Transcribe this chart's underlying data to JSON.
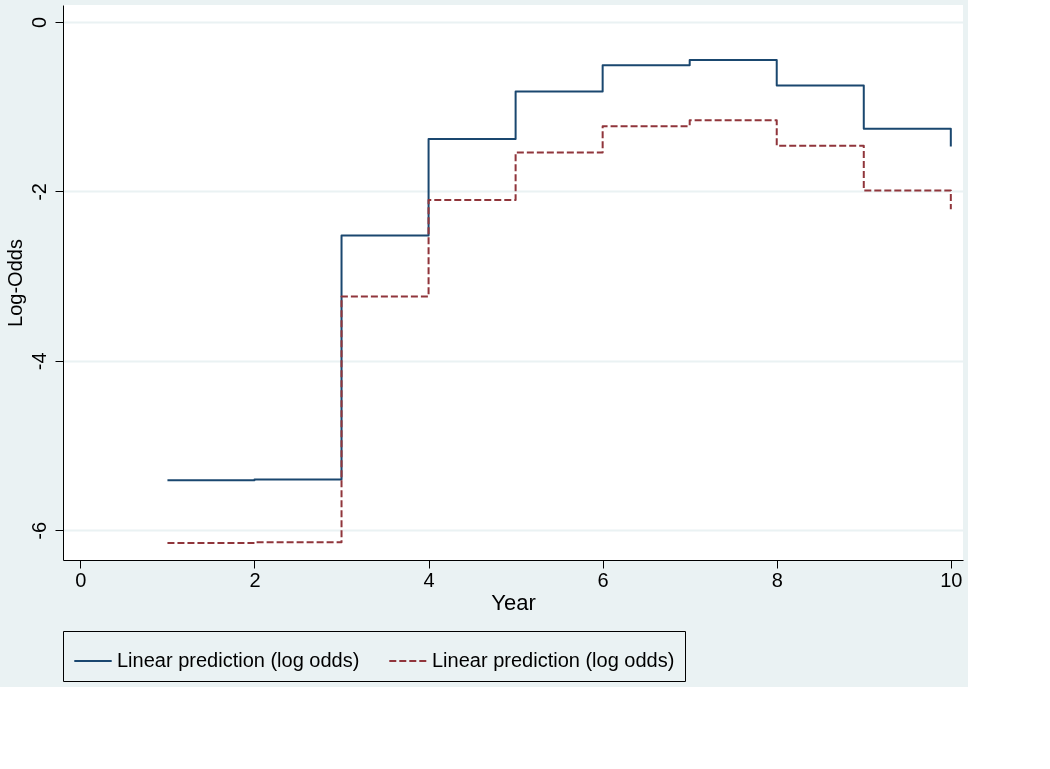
{
  "chart_data": {
    "type": "step",
    "xlabel": "Year",
    "ylabel": "Log-Odds",
    "x": [
      1,
      2,
      3,
      4,
      5,
      6,
      7,
      8,
      9,
      10
    ],
    "series": [
      {
        "name": "Linear prediction (log odds)",
        "color": "#1a476f",
        "line_style": "solid",
        "values": [
          -5.41,
          -5.4,
          -2.52,
          -1.38,
          -0.82,
          -0.51,
          -0.45,
          -0.75,
          -1.26,
          -1.47
        ]
      },
      {
        "name": "Linear prediction (log odds)",
        "color": "#90353b",
        "line_style": "dashed",
        "values": [
          -6.15,
          -6.14,
          -3.24,
          -2.1,
          -1.54,
          -1.23,
          -1.16,
          -1.46,
          -1.99,
          -2.21
        ]
      }
    ],
    "xlim": [
      -0.2,
      10.14
    ],
    "ylim": [
      -6.35,
      0.2
    ],
    "xticks": [
      0,
      2,
      4,
      6,
      8,
      10
    ],
    "yticks": [
      -6,
      -4,
      -2,
      0
    ],
    "grid": "y",
    "legend": "bottom",
    "marker": "none"
  }
}
